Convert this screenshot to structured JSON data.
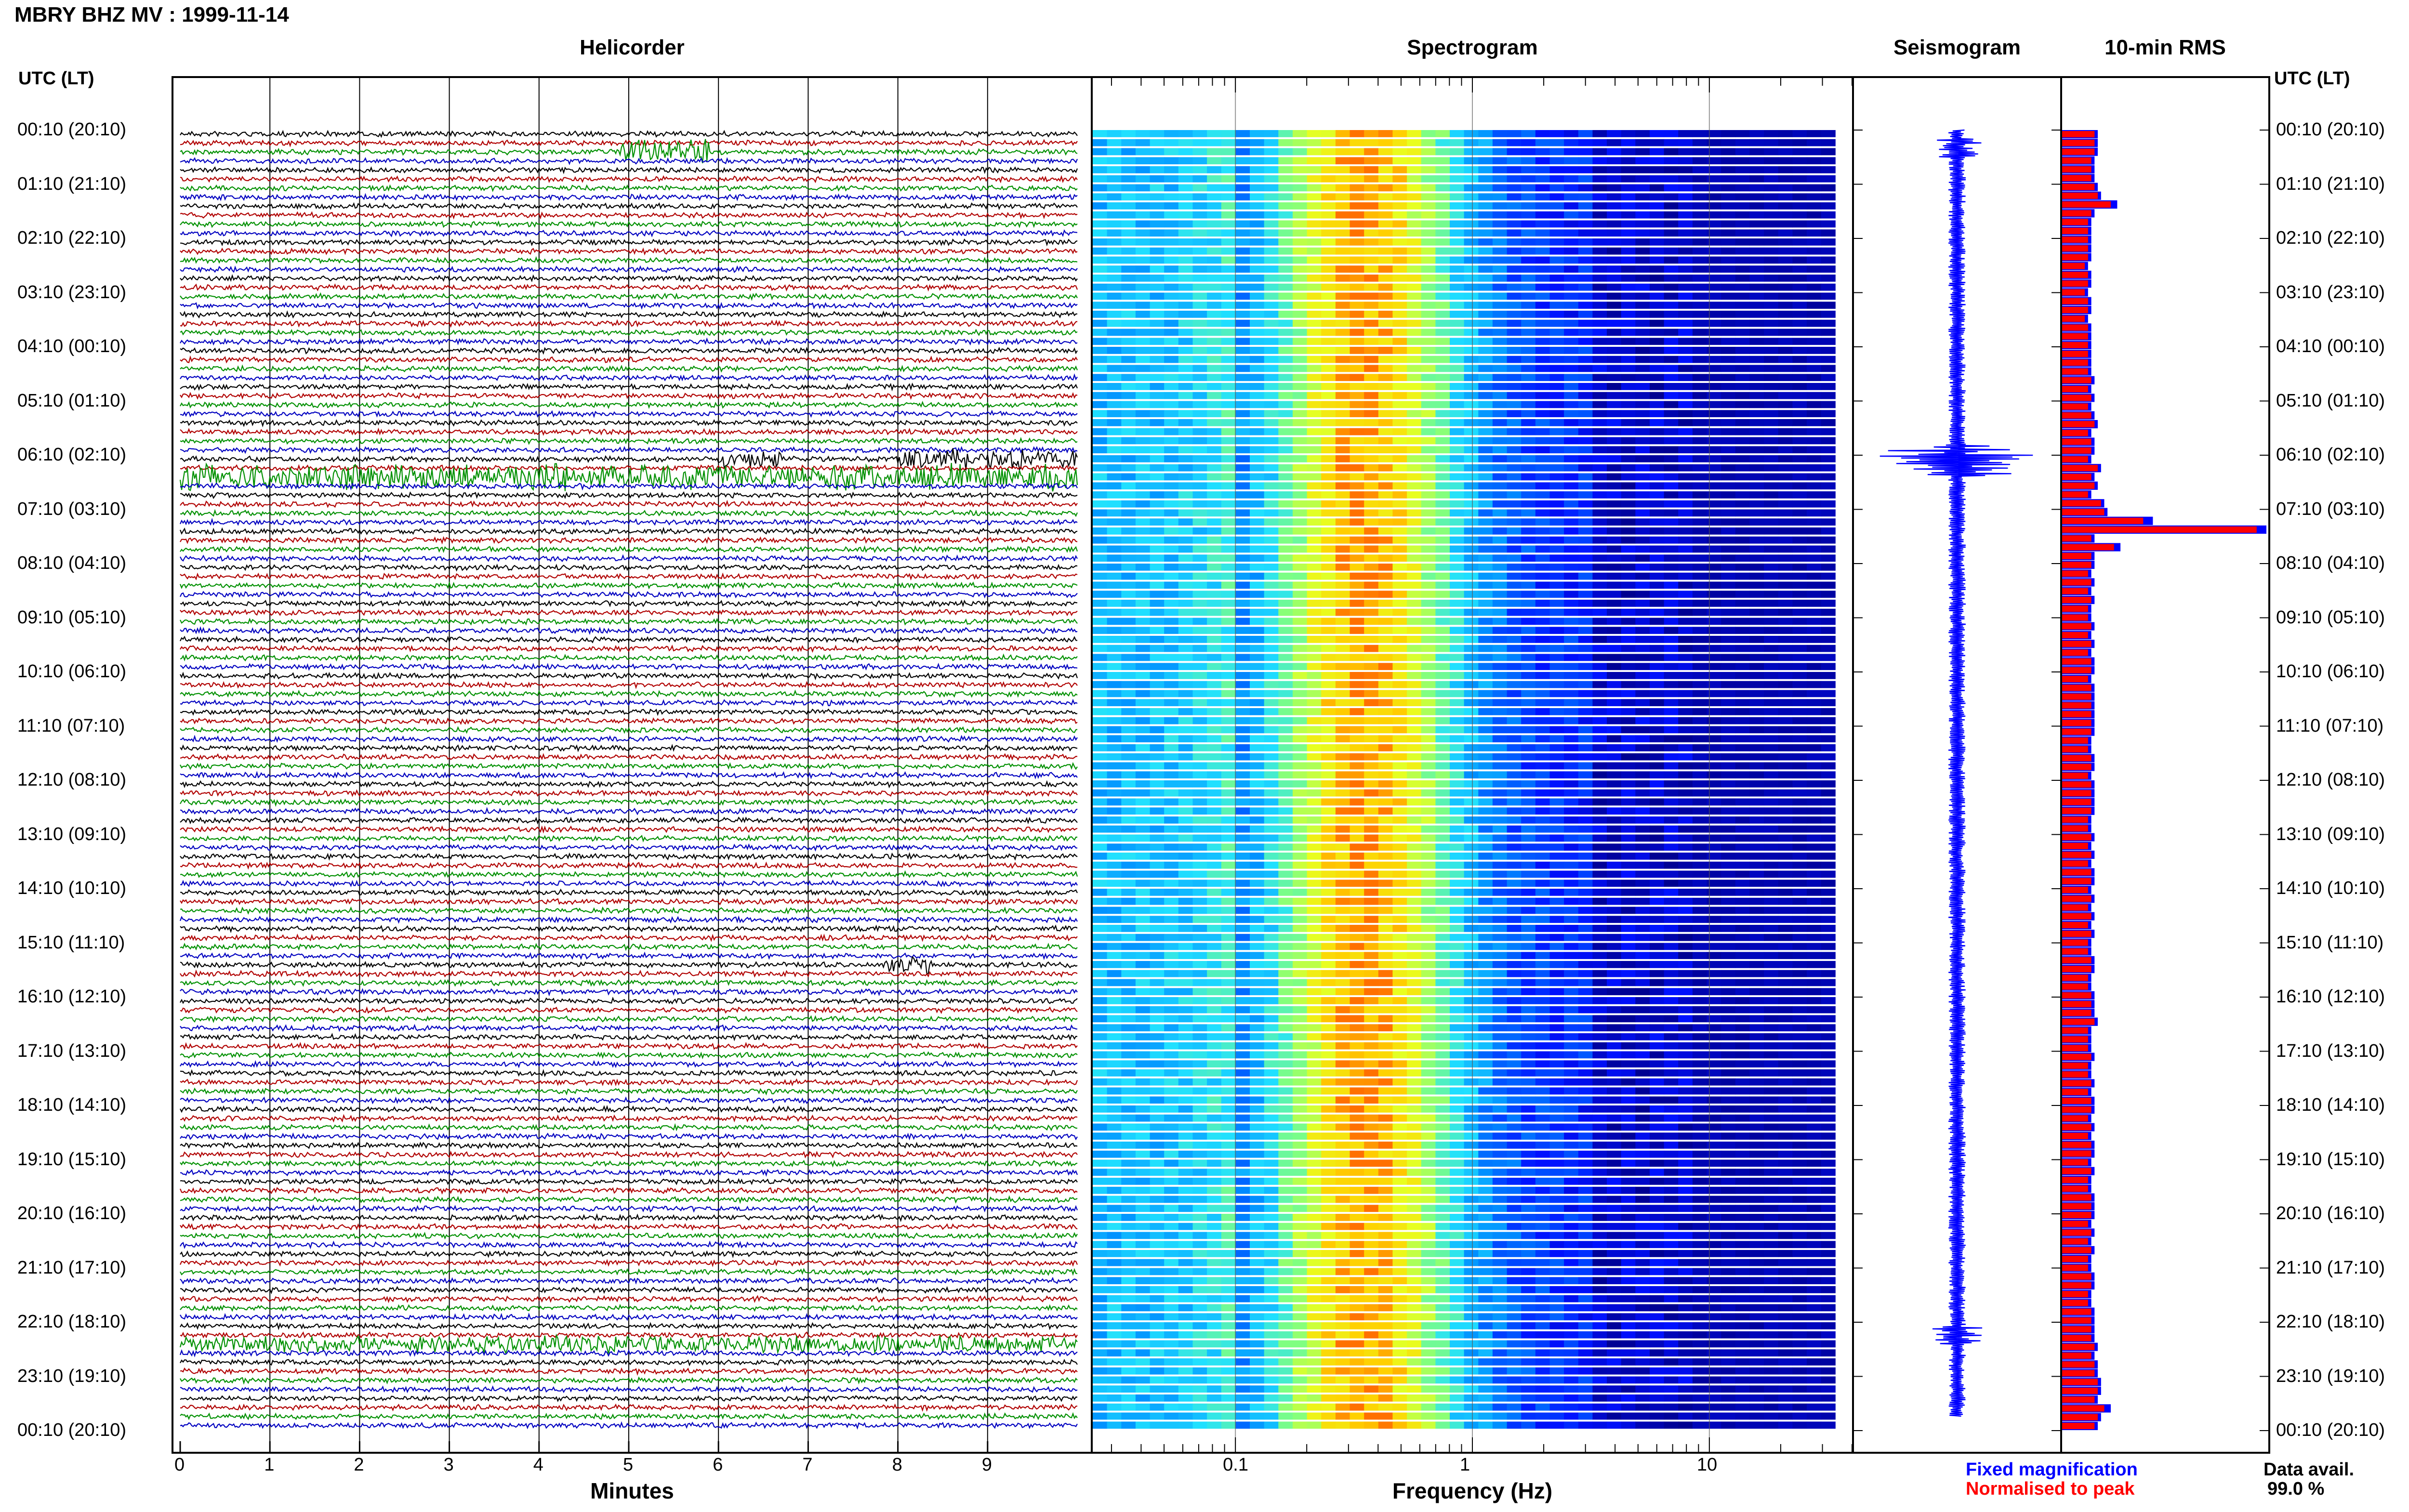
{
  "title": "MBRY BHZ MV : 1999-11-14",
  "axis_header_left": "UTC (LT)",
  "axis_header_right": "UTC (LT)",
  "panels": {
    "helicorder": "Helicorder",
    "spectrogram": "Spectrogram",
    "seismogram": "Seismogram",
    "rms": "10-min RMS"
  },
  "xlabels": {
    "helicorder": "Minutes",
    "spectrogram": "Frequency (Hz)"
  },
  "legend": {
    "fixed": "Fixed magnification",
    "normalised": "Normalised to peak",
    "data_avail_label": "Data avail.",
    "data_avail_value": "99.0 %",
    "fixed_color": "#0000ff",
    "normalised_color": "#ff0000"
  },
  "chart_data": [
    {
      "type": "line",
      "panel": "helicorder",
      "x_ticks": [
        "0",
        "1",
        "2",
        "3",
        "4",
        "5",
        "6",
        "7",
        "8",
        "9"
      ],
      "xlim": [
        0,
        10
      ],
      "trace_colors": [
        "#000000",
        "#b00000",
        "#009000",
        "#0000c0"
      ],
      "y_tick_labels": [
        "00:10 (20:10)",
        "01:10 (21:10)",
        "02:10 (22:10)",
        "03:10 (23:10)",
        "04:10 (00:10)",
        "05:10 (01:10)",
        "06:10 (02:10)",
        "07:10 (03:10)",
        "08:10 (04:10)",
        "09:10 (05:10)",
        "10:10 (06:10)",
        "11:10 (07:10)",
        "12:10 (08:10)",
        "13:10 (09:10)",
        "14:10 (10:10)",
        "15:10 (11:10)",
        "16:10 (12:10)",
        "17:10 (13:10)",
        "18:10 (14:10)",
        "19:10 (15:10)",
        "20:10 (16:10)",
        "21:10 (17:10)",
        "22:10 (18:10)",
        "23:10 (19:10)",
        "00:10 (20:10)"
      ]
    },
    {
      "type": "heatmap",
      "panel": "spectrogram",
      "xscale": "log",
      "x_ticks": [
        "0.1",
        "1",
        "10"
      ],
      "xlim": [
        0.025,
        40
      ]
    },
    {
      "type": "line",
      "panel": "seismogram",
      "trace_color": "#0000ff"
    },
    {
      "type": "bar",
      "panel": "rms",
      "series": [
        {
          "name": "Fixed magnification",
          "color": "#0000ff",
          "values": [
            11,
            11,
            11,
            10,
            10,
            10,
            11,
            12,
            17,
            10,
            9,
            9,
            9,
            9,
            9,
            8,
            9,
            9,
            8,
            9,
            9,
            8,
            9,
            9,
            9,
            9,
            9,
            9,
            10,
            9,
            10,
            9,
            10,
            11,
            9,
            10,
            10,
            9,
            12,
            10,
            11,
            9,
            13,
            14,
            28,
            63,
            10,
            18,
            10,
            10,
            9,
            10,
            9,
            10,
            9,
            9,
            10,
            9,
            10,
            9,
            10,
            10,
            9,
            10,
            10,
            10,
            10,
            10,
            10,
            9,
            9,
            10,
            10,
            9,
            10,
            10,
            10,
            10,
            9,
            9,
            10,
            9,
            10,
            9,
            10,
            10,
            9,
            10,
            9,
            10,
            9,
            10,
            9,
            9,
            10,
            10,
            9,
            9,
            10,
            10,
            10,
            11,
            9,
            9,
            9,
            10,
            9,
            9,
            10,
            9,
            10,
            10,
            9,
            10,
            9,
            10,
            10,
            9,
            10,
            9,
            9,
            10,
            10,
            10,
            9,
            10,
            9,
            10,
            9,
            9,
            10,
            10,
            9,
            9,
            10,
            10,
            10,
            10,
            11,
            10,
            11,
            11,
            12,
            12,
            11,
            15,
            12,
            11
          ]
        },
        {
          "name": "Normalised to peak",
          "color": "#ff0000",
          "values": [
            10,
            10,
            10,
            9,
            9,
            9,
            10,
            11,
            15,
            9,
            8,
            8,
            8,
            8,
            8,
            7,
            8,
            8,
            7,
            8,
            8,
            7,
            8,
            8,
            8,
            8,
            8,
            8,
            9,
            8,
            9,
            8,
            9,
            10,
            8,
            9,
            9,
            8,
            11,
            9,
            10,
            8,
            12,
            13,
            25,
            60,
            9,
            16,
            9,
            9,
            8,
            9,
            8,
            9,
            8,
            8,
            9,
            8,
            9,
            8,
            9,
            9,
            8,
            9,
            9,
            9,
            9,
            9,
            9,
            8,
            8,
            9,
            9,
            8,
            9,
            9,
            9,
            9,
            8,
            8,
            9,
            8,
            9,
            8,
            9,
            9,
            8,
            9,
            8,
            9,
            8,
            9,
            8,
            8,
            9,
            9,
            8,
            8,
            9,
            9,
            9,
            10,
            8,
            8,
            8,
            9,
            8,
            8,
            9,
            8,
            9,
            9,
            8,
            9,
            8,
            9,
            9,
            8,
            9,
            8,
            8,
            9,
            9,
            9,
            8,
            9,
            8,
            9,
            8,
            8,
            9,
            9,
            8,
            8,
            9,
            9,
            9,
            9,
            10,
            9,
            10,
            10,
            11,
            11,
            10,
            13,
            11,
            10
          ]
        }
      ]
    }
  ]
}
